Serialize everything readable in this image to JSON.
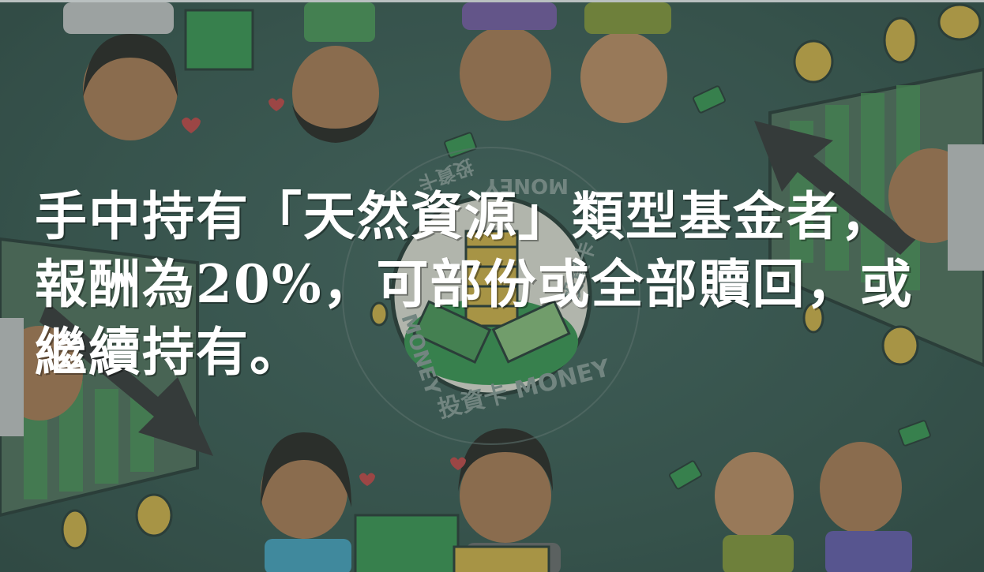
{
  "seal": {
    "bottom_text": "投資卡 MONEY",
    "top_text": "MONEY",
    "left_text": "MONEY",
    "right_text": "投資卡",
    "top_left_text": "投資卡"
  },
  "message": {
    "line1": "手中持有「天然資源」類型基金者，",
    "line2": "報酬為20%，可部份或全部贖回，或",
    "line3": "繼續持有。"
  },
  "colors": {
    "background": "#3f5f57",
    "text": "#ffffff",
    "gold": "#d9b64a",
    "money_green": "#3e9a55"
  },
  "icons": [
    "coin-icon",
    "money-stack-icon",
    "rising-arrow-chart",
    "falling-arrow-chart",
    "flying-money-icon",
    "heart-icon"
  ]
}
